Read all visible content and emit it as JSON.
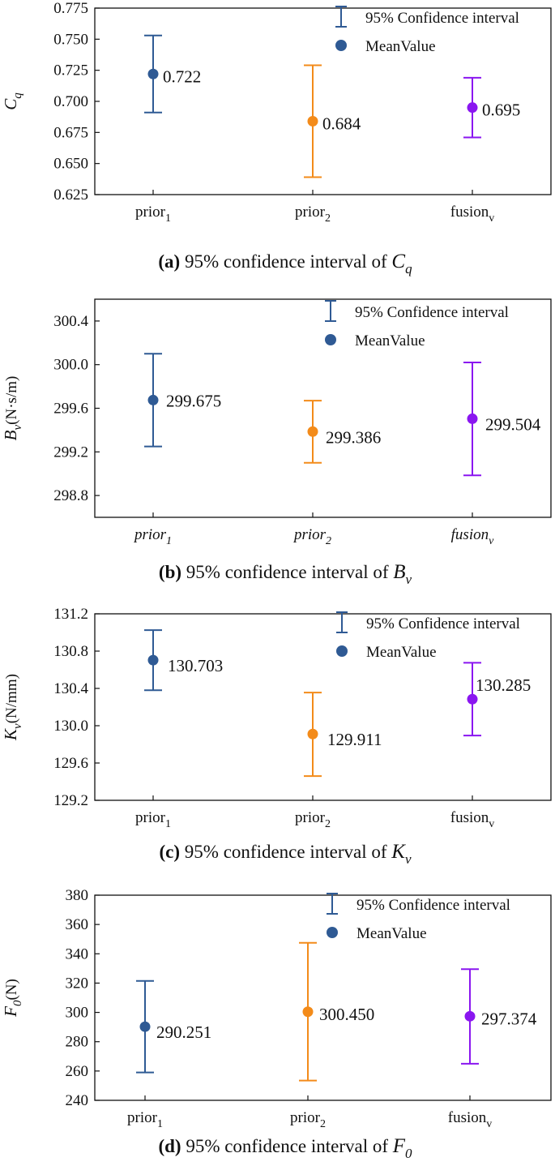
{
  "legend": {
    "ci_label": "95% Confidence interval",
    "mean_label": "MeanValue"
  },
  "colors": {
    "prior1": "#2f5a94",
    "prior2": "#f38b1a",
    "fusion": "#8a16f0",
    "axis": "#111111"
  },
  "chart_data": [
    {
      "type": "errorbar",
      "panel": "a",
      "ylabel_main": "C",
      "ylabel_sub": "q",
      "ylabel_unit": "",
      "cat_style": "normal",
      "categories": [
        {
          "main": "prior",
          "sub": "1"
        },
        {
          "main": "prior",
          "sub": "2"
        },
        {
          "main": "fusion",
          "sub": "v"
        }
      ],
      "means": [
        0.722,
        0.684,
        0.695
      ],
      "lower": [
        0.691,
        0.639,
        0.671
      ],
      "upper": [
        0.753,
        0.729,
        0.719
      ],
      "labels": [
        "0.722",
        "0.684",
        "0.695"
      ],
      "yticks": [
        "0.625",
        "0.650",
        "0.675",
        "0.700",
        "0.725",
        "0.750",
        "0.775"
      ],
      "ylim": [
        0.625,
        0.775
      ],
      "caption": {
        "tag": "(a)",
        "text": " 95% confidence interval of ",
        "sym": "C",
        "sym_sub": "q"
      }
    },
    {
      "type": "errorbar",
      "panel": "b",
      "ylabel_main": "B",
      "ylabel_sub": "v",
      "ylabel_unit": "(N·s/m)",
      "cat_style": "italic",
      "categories": [
        {
          "main": "prior",
          "sub": "1"
        },
        {
          "main": "prior",
          "sub": "2"
        },
        {
          "main": "fusion",
          "sub": "v"
        }
      ],
      "means": [
        299.675,
        299.386,
        299.504
      ],
      "lower": [
        299.25,
        299.1,
        298.985
      ],
      "upper": [
        300.1,
        299.67,
        300.02
      ],
      "labels": [
        "299.675",
        "299.386",
        "299.504"
      ],
      "yticks": [
        "298.8",
        "299.2",
        "299.6",
        "300.0",
        "300.4"
      ],
      "ylim": [
        298.6,
        300.6
      ],
      "caption": {
        "tag": "(b)",
        "text": " 95% confidence interval of ",
        "sym": "B",
        "sym_sub": "v"
      }
    },
    {
      "type": "errorbar",
      "panel": "c",
      "ylabel_main": "K",
      "ylabel_sub": "v",
      "ylabel_unit": "(N/mm)",
      "cat_style": "normal",
      "categories": [
        {
          "main": "prior",
          "sub": "1"
        },
        {
          "main": "prior",
          "sub": "2"
        },
        {
          "main": "fusion",
          "sub": "v"
        }
      ],
      "means": [
        130.703,
        129.911,
        130.285
      ],
      "lower": [
        130.38,
        129.46,
        129.895
      ],
      "upper": [
        131.025,
        130.355,
        130.675
      ],
      "labels": [
        "130.703",
        "129.911",
        "130.285"
      ],
      "yticks": [
        "129.2",
        "129.6",
        "130.0",
        "130.4",
        "130.8",
        "131.2"
      ],
      "ylim": [
        129.2,
        131.2
      ],
      "caption": {
        "tag": "(c)",
        "text": " 95% confidence interval of ",
        "sym": "K",
        "sym_sub": "v"
      }
    },
    {
      "type": "errorbar",
      "panel": "d",
      "ylabel_main": "F",
      "ylabel_sub": "0",
      "ylabel_unit": "(N)",
      "cat_style": "normal",
      "categories": [
        {
          "main": "prior",
          "sub": "1"
        },
        {
          "main": "prior",
          "sub": "2"
        },
        {
          "main": "fusion",
          "sub": "v"
        }
      ],
      "means": [
        290.251,
        300.45,
        297.374
      ],
      "lower": [
        259,
        253.5,
        265
      ],
      "upper": [
        321.5,
        347.5,
        329.5
      ],
      "labels": [
        "290.251",
        "300.450",
        "297.374"
      ],
      "yticks": [
        "240",
        "260",
        "280",
        "300",
        "320",
        "340",
        "360",
        "380"
      ],
      "ylim": [
        240,
        380
      ],
      "caption": {
        "tag": "(d)",
        "text": " 95% confidence interval of ",
        "sym": "F",
        "sym_sub": "0"
      }
    }
  ]
}
